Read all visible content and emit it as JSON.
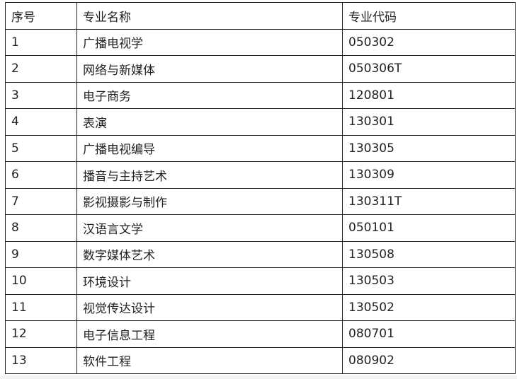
{
  "table": {
    "headers": [
      "序号",
      "专业名称",
      "专业代码"
    ],
    "rows": [
      [
        "1",
        "广播电视学",
        "050302"
      ],
      [
        "2",
        "网络与新媒体",
        "050306T"
      ],
      [
        "3",
        "电子商务",
        "120801"
      ],
      [
        "4",
        "表演",
        "130301"
      ],
      [
        "5",
        "广播电视编导",
        "130305"
      ],
      [
        "6",
        "播音与主持艺术",
        "130309"
      ],
      [
        "7",
        "影视摄影与制作",
        "130311T"
      ],
      [
        "8",
        "汉语言文学",
        "050101"
      ],
      [
        "9",
        "数字媒体艺术",
        "130508"
      ],
      [
        "10",
        "环境设计",
        "130503"
      ],
      [
        "11",
        "视觉传达设计",
        "130502"
      ],
      [
        "12",
        "电子信息工程",
        "080701"
      ],
      [
        "13",
        "软件工程",
        "080902"
      ]
    ]
  }
}
